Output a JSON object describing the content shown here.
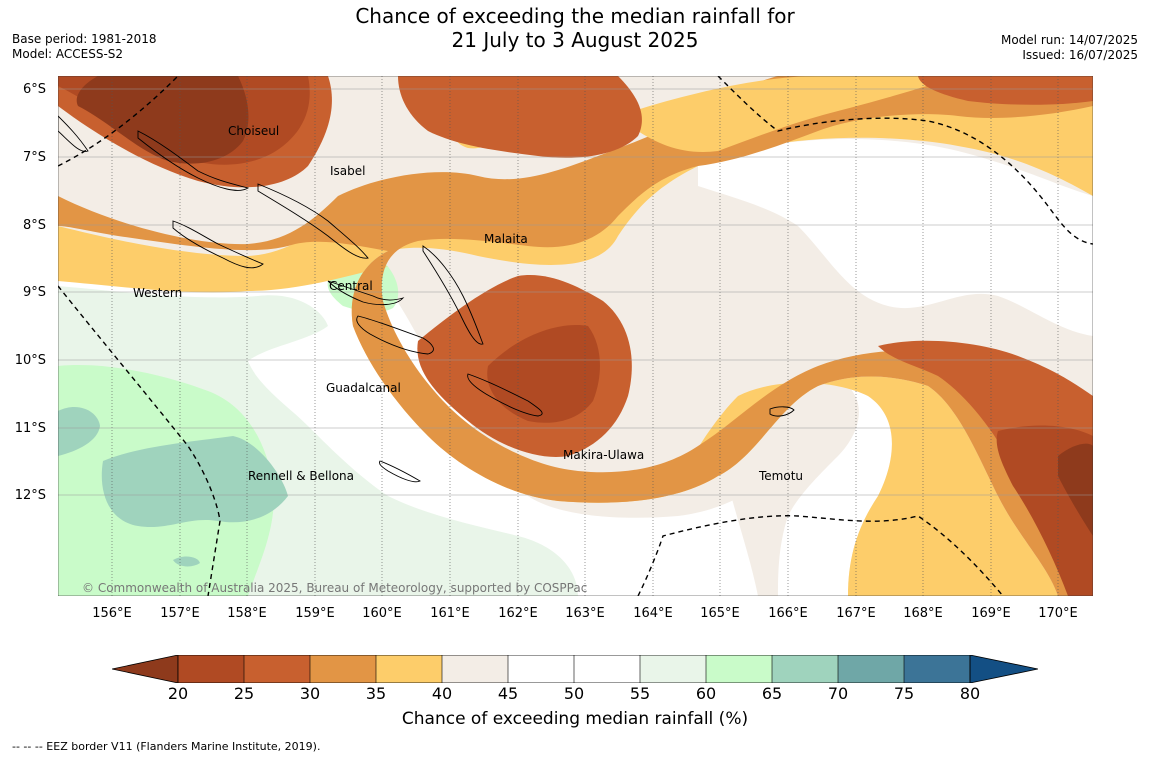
{
  "title": {
    "line1": "Chance of exceeding the median rainfall for",
    "line2": "21 July to 3 August 2025"
  },
  "meta_left": {
    "base_period": "Base period: 1981-2018",
    "model": "Model: ACCESS-S2"
  },
  "meta_right": {
    "model_run": "Model run: 14/07/2025",
    "issued": "Issued: 16/07/2025"
  },
  "latitude_ticks": [
    "6°S",
    "7°S",
    "8°S",
    "9°S",
    "10°S",
    "11°S",
    "12°S"
  ],
  "longitude_ticks": [
    "156°E",
    "157°E",
    "158°E",
    "159°E",
    "160°E",
    "161°E",
    "162°E",
    "163°E",
    "164°E",
    "165°E",
    "166°E",
    "167°E",
    "168°E",
    "169°E",
    "170°E"
  ],
  "place_labels": {
    "choiseul": "Choiseul",
    "isabel": "Isabel",
    "malaita": "Malaita",
    "western": "Western",
    "central": "Central",
    "guadalcanal": "Guadalcanal",
    "makira": "Makira-Ulawa",
    "rennell": "Rennell & Bellona",
    "temotu": "Temotu"
  },
  "copyright": "© Commonwealth of Australia 2025, Bureau of Meteorology, supported by COSPPac",
  "colorbar": {
    "ticks": [
      "20",
      "25",
      "30",
      "35",
      "40",
      "45",
      "50",
      "55",
      "60",
      "65",
      "70",
      "75",
      "80"
    ],
    "colors": {
      "below_20": "#8e3a1c",
      "c20_25": "#b04a23",
      "c25_30": "#c8602f",
      "c30_35": "#e29545",
      "c35_40": "#fdcd6a",
      "c40_45": "#f3ede6",
      "c45_50": "#ffffff",
      "c50_55": "#ffffff",
      "c55_60": "#e9f5e9",
      "c60_65": "#c9fbc9",
      "c65_70": "#9fd3bd",
      "c70_75": "#6fa7a7",
      "c75_80": "#3c7497",
      "above_80": "#134f84"
    },
    "label": "Chance of exceeding median rainfall (%)"
  },
  "footer": "--  --  -- EEZ border V11 (Flanders Marine Institute, 2019)."
}
